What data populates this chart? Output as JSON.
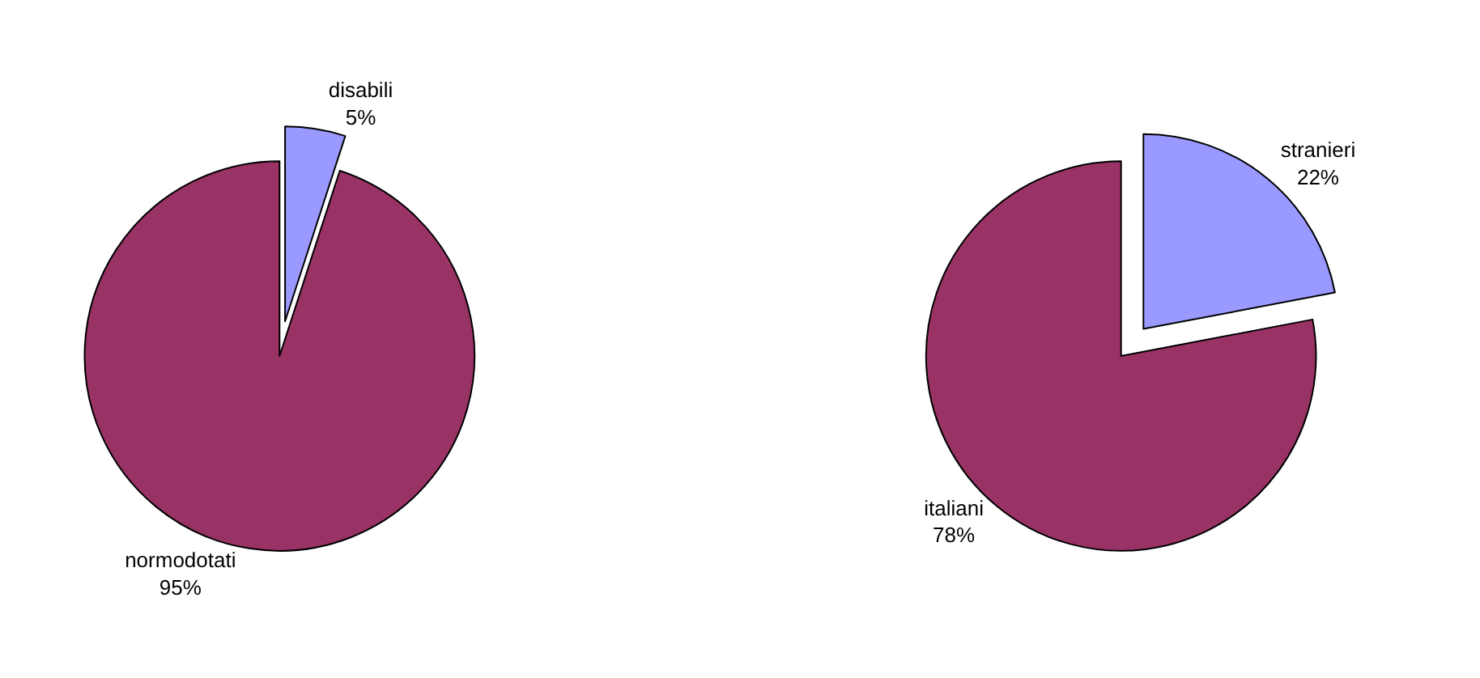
{
  "chart_data": [
    {
      "type": "pie",
      "categories": [
        "disabili",
        "normodotati"
      ],
      "values": [
        5,
        95
      ],
      "colors": [
        "#9999ff",
        "#993366"
      ],
      "value_labels": [
        "5%",
        "95%"
      ]
    },
    {
      "type": "pie",
      "categories": [
        "stranieri",
        "italiani"
      ],
      "values": [
        22,
        78
      ],
      "colors": [
        "#9999ff",
        "#993366"
      ],
      "value_labels": [
        "22%",
        "78%"
      ]
    }
  ]
}
